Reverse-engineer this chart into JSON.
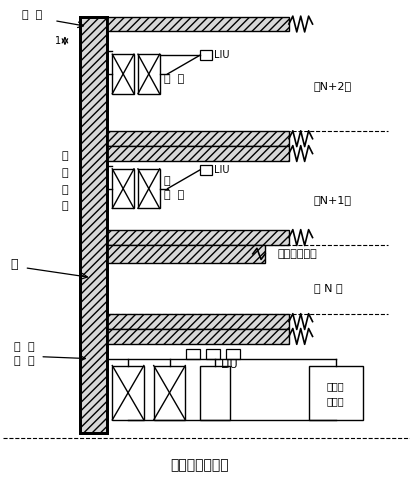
{
  "title": "垂直线槽示意图",
  "bg_color": "#ffffff",
  "fig_width": 4.13,
  "fig_height": 4.84,
  "labels": {
    "cu_gang": "粗  钢",
    "zhu_xian_cao": [
      "竖",
      "直",
      "线",
      "槽"
    ],
    "guang": "光",
    "da_shuang_jiao": [
      "大",
      "双"
    ],
    "dui_jiao": [
      "对",
      "绞"
    ],
    "pei_xian_n2": "配  线",
    "guang_n1": "光",
    "pei_xian_n1": "配  线",
    "LIU_n2": "LIU",
    "LIU_n1": "LIU",
    "LIU_bottom": "LIU",
    "ceng_n2": "第N+2层",
    "ceng_n1": "第N+1层",
    "ceng_n": "第 N 层",
    "tong_xiang": "通向配线室的",
    "ji_suan_ji": "计算机",
    "zhu_ji_fang": "主机房",
    "dim_label": "1"
  }
}
